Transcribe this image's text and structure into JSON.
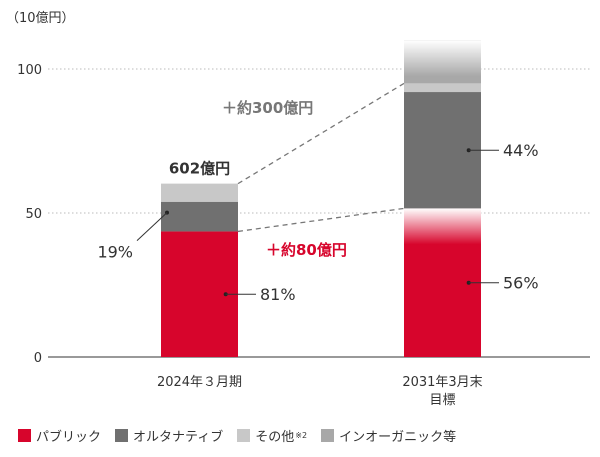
{
  "chart_data": {
    "type": "bar",
    "stacked": true,
    "unit_label": "（10億円）",
    "y_ticks": [
      "100",
      "50",
      "0"
    ],
    "y_tick_values": [
      100,
      50,
      0
    ],
    "ylim": [
      0,
      110
    ],
    "grid": true,
    "categories": [
      "2024年３月期",
      "2031年3月末"
    ],
    "category_sublabels": [
      "",
      "目標"
    ],
    "series": [
      {
        "name": "パブリック",
        "color": "#d7052c",
        "values": [
          43.6,
          51.6
        ]
      },
      {
        "name": "オルタナティブ",
        "color": "#707070",
        "values": [
          10.3,
          40.4
        ]
      },
      {
        "name": "その他",
        "color": "#c8c8c8",
        "values": [
          6.3,
          3.0
        ]
      },
      {
        "name": "インオーガニック等",
        "color": "#a8a8a8",
        "values": [
          0,
          15.0
        ]
      }
    ],
    "totals": [
      {
        "label": "602億円",
        "value": 60.2
      }
    ],
    "percent_labels": [
      {
        "category": 0,
        "series": 0,
        "text": "81%"
      },
      {
        "category": 0,
        "series": 1,
        "text": "19%"
      },
      {
        "category": 1,
        "series": 0,
        "text": "56%"
      },
      {
        "category": 1,
        "series": 1,
        "text": "44%"
      }
    ],
    "annotations": [
      {
        "text": "＋約300億円",
        "color": "#777777"
      },
      {
        "text": "＋約80億円",
        "color": "#d7052c"
      }
    ],
    "legend": {
      "position": "bottom",
      "items": [
        {
          "label": "パブリック",
          "color": "#d7052c",
          "sup": ""
        },
        {
          "label": "オルタナティブ",
          "color": "#707070",
          "sup": ""
        },
        {
          "label": "その他",
          "color": "#c8c8c8",
          "sup": "※2"
        },
        {
          "label": "インオーガニック等",
          "color": "#a8a8a8",
          "sup": ""
        }
      ]
    }
  }
}
